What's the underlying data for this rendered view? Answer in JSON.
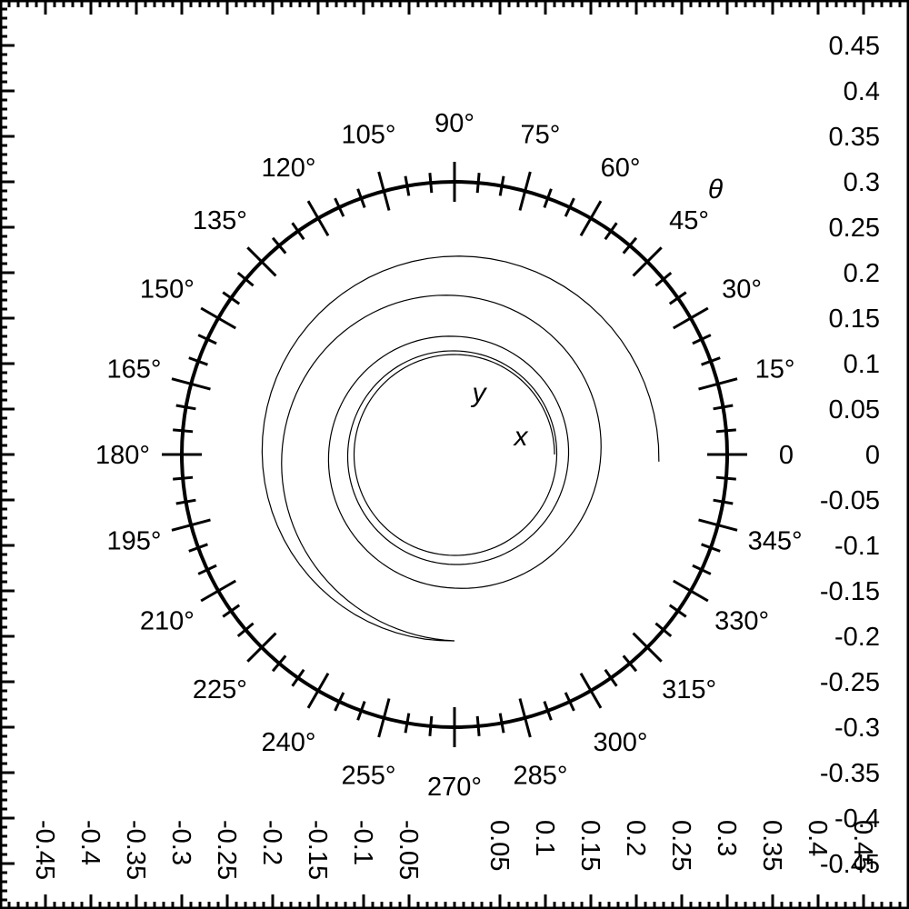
{
  "chart_data": {
    "type": "line",
    "coordinate_system": "polar",
    "xlim": [
      -0.5,
      0.5
    ],
    "ylim": [
      -0.5,
      0.5
    ],
    "x_ticks": {
      "major_labels": [
        "-0.45",
        "-0.4",
        "-0.35",
        "-0.3",
        "-0.25",
        "-0.2",
        "-0.15",
        "-0.1",
        "-0.05",
        "0.05",
        "0.1",
        "0.15",
        "0.2",
        "0.25",
        "0.3",
        "0.35",
        "0.4",
        "0.45"
      ],
      "major_values": [
        -0.45,
        -0.4,
        -0.35,
        -0.3,
        -0.25,
        -0.2,
        -0.15,
        -0.1,
        -0.05,
        0.05,
        0.1,
        0.15,
        0.2,
        0.25,
        0.3,
        0.35,
        0.4,
        0.45
      ],
      "minor_step": 0.01
    },
    "y_ticks": {
      "major_labels": [
        "0.45",
        "0.4",
        "0.35",
        "0.3",
        "0.25",
        "0.2",
        "0.15",
        "0.1",
        "0.05",
        "0",
        "-0.05",
        "-0.1",
        "-0.15",
        "-0.2",
        "-0.25",
        "-0.3",
        "-0.35",
        "-0.4",
        "-0.45"
      ],
      "major_values": [
        0.45,
        0.4,
        0.35,
        0.3,
        0.25,
        0.2,
        0.15,
        0.1,
        0.05,
        0,
        -0.05,
        -0.1,
        -0.15,
        -0.2,
        -0.25,
        -0.3,
        -0.35,
        -0.4,
        -0.45
      ],
      "minor_step": 0.01
    },
    "polar_ring": {
      "radius": 0.3,
      "major_step_deg": 15,
      "minor_step_deg": 5,
      "angle_labels": [
        "0",
        "15°",
        "30°",
        "45°",
        "60°",
        "75°",
        "90°",
        "105°",
        "120°",
        "135°",
        "150°",
        "165°",
        "180°",
        "195°",
        "210°",
        "225°",
        "240°",
        "255°",
        "270°",
        "285°",
        "300°",
        "315°",
        "330°",
        "345°"
      ],
      "angle_values": [
        0,
        15,
        30,
        45,
        60,
        75,
        90,
        105,
        120,
        135,
        150,
        165,
        180,
        195,
        210,
        225,
        240,
        255,
        270,
        285,
        300,
        315,
        330,
        345
      ]
    },
    "axis_labels": {
      "theta": "θ",
      "x": "x",
      "y": "y"
    },
    "series": [
      {
        "r": [
          0.225,
          0.205,
          0.175,
          0.147,
          0.13,
          0.121,
          0.114,
          0.111,
          0.11,
          0.11
        ],
        "theta_deg": [
          -2,
          270,
          90,
          -90,
          -270,
          -450,
          -630,
          -810,
          -990,
          -1080
        ]
      }
    ]
  }
}
